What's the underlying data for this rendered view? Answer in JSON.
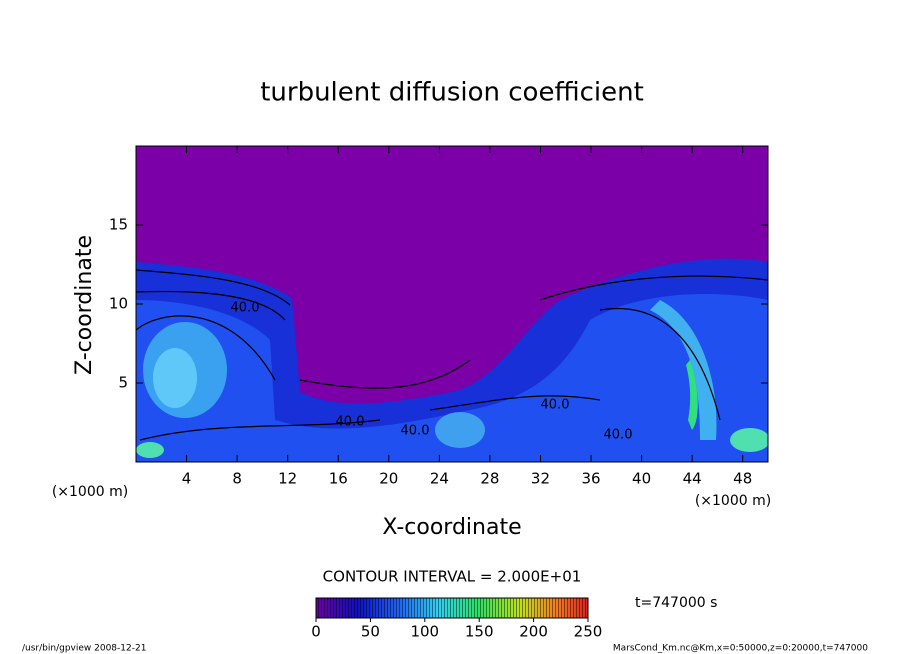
{
  "chart_data": {
    "type": "heatmap",
    "title": "turbulent diffusion coefficient",
    "xlabel": "X-coordinate",
    "ylabel": "Z-coordinate",
    "xunit": "(×1000 m)",
    "xlim": [
      0,
      50
    ],
    "xticks": [
      4,
      8,
      12,
      16,
      20,
      24,
      28,
      32,
      36,
      40,
      44,
      48
    ],
    "ylim": [
      0,
      20
    ],
    "yticks": [
      5,
      10,
      15
    ],
    "contour_labels": [
      "40.0",
      "40.0",
      "40.0",
      "40.0",
      "40.0"
    ],
    "contour_interval": "CONTOUR INTERVAL = 2.000E+01",
    "colorbar": {
      "lim": [
        0,
        250
      ],
      "ticks": [
        0,
        50,
        100,
        150,
        200,
        250
      ]
    },
    "time": "t=747000 s",
    "footer_left": "/usr/bin/gpview   2008-12-21",
    "footer_right": "MarsCond_Km.nc@Km,x=0:50000,z=0:20000,t=747000"
  }
}
